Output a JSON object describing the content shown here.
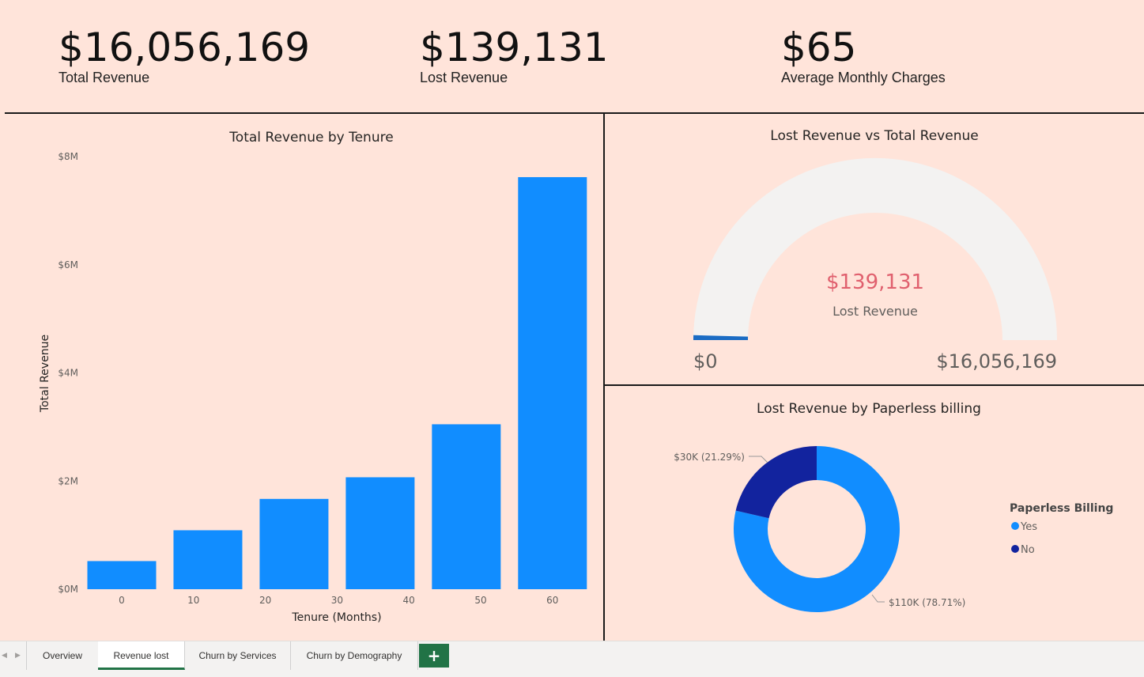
{
  "kpis": [
    {
      "value": "$16,056,169",
      "label": "Total Revenue"
    },
    {
      "value": "$139,131",
      "label": "Lost Revenue"
    },
    {
      "value": "$65",
      "label": "Average Monthly Charges"
    }
  ],
  "colors": {
    "background": "#ffe4da",
    "bar": "#118dff",
    "gauge_track": "#f3f2f1",
    "gauge_fill": "#1a6cc4",
    "gauge_value": "#e0606e",
    "donut_yes": "#118dff",
    "donut_no": "#12239e",
    "tab_accent": "#217346"
  },
  "bar_chart": {
    "title": "Total Revenue by Tenure",
    "xlabel": "Tenure (Months)",
    "ylabel": "Total Revenue",
    "y_ticks": [
      "$0M",
      "$2M",
      "$4M",
      "$6M",
      "$8M"
    ],
    "x_ticks": [
      "0",
      "10",
      "20",
      "30",
      "40",
      "50",
      "60"
    ]
  },
  "gauge": {
    "title": "Lost Revenue vs Total Revenue",
    "value_label": "$139,131",
    "caption": "Lost Revenue",
    "min_label": "$0",
    "max_label": "$16,056,169"
  },
  "donut": {
    "title": "Lost Revenue by Paperless billing",
    "no_label": "$30K (21.29%)",
    "yes_label": "$110K (78.71%)",
    "legend_title": "Paperless Billing",
    "legend": [
      "Yes",
      "No"
    ]
  },
  "tabs": [
    "Overview",
    "Revenue lost",
    "Churn by Services",
    "Churn by Demography"
  ],
  "active_tab": "Revenue lost",
  "add_tab_icon": "plus-icon",
  "chart_data": [
    {
      "type": "bar",
      "title": "Total Revenue by Tenure",
      "xlabel": "Tenure (Months)",
      "ylabel": "Total Revenue",
      "categories": [
        "0",
        "10",
        "20",
        "30",
        "40",
        "50",
        "60"
      ],
      "x": [
        0,
        12,
        24,
        36,
        48,
        60
      ],
      "values": [
        0.52,
        1.09,
        1.67,
        2.07,
        3.05,
        7.62
      ],
      "unit": "$M",
      "ylim": [
        0,
        8
      ],
      "grid": false
    },
    {
      "type": "gauge",
      "title": "Lost Revenue vs Total Revenue",
      "value": 139131,
      "min": 0,
      "max": 16056169
    },
    {
      "type": "pie",
      "title": "Lost Revenue by Paperless billing",
      "categories": [
        "Yes",
        "No"
      ],
      "values": [
        110,
        30
      ],
      "percents": [
        78.71,
        21.29
      ],
      "unit": "$K",
      "legend": "right"
    }
  ]
}
